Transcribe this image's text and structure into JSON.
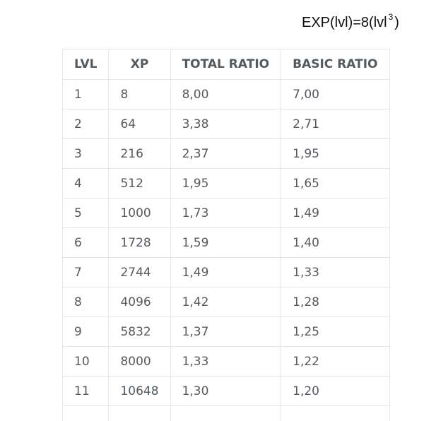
{
  "formula": {
    "prefix": "EXP(lvl)=8(lvl",
    "exponent": "3",
    "suffix": ")"
  },
  "table": {
    "headers": [
      "LVL",
      "XP",
      "TOTAL RATIO",
      "BASIC RATIO"
    ],
    "rows": [
      [
        "1",
        "8",
        "8,00",
        "7,00"
      ],
      [
        "2",
        "64",
        "3,38",
        "2,71"
      ],
      [
        "3",
        "216",
        "2,37",
        "1,95"
      ],
      [
        "4",
        "512",
        "1,95",
        "1,65"
      ],
      [
        "5",
        "1000",
        "1,73",
        "1,49"
      ],
      [
        "6",
        "1728",
        "1,59",
        "1,40"
      ],
      [
        "7",
        "2744",
        "1,49",
        "1,33"
      ],
      [
        "8",
        "4096",
        "1,42",
        "1,28"
      ],
      [
        "9",
        "5832",
        "1,37",
        "1,25"
      ],
      [
        "10",
        "8000",
        "1,33",
        "1,22"
      ],
      [
        "11",
        "10648",
        "1,30",
        "1,20"
      ],
      [
        "",
        "",
        "",
        ""
      ]
    ]
  }
}
